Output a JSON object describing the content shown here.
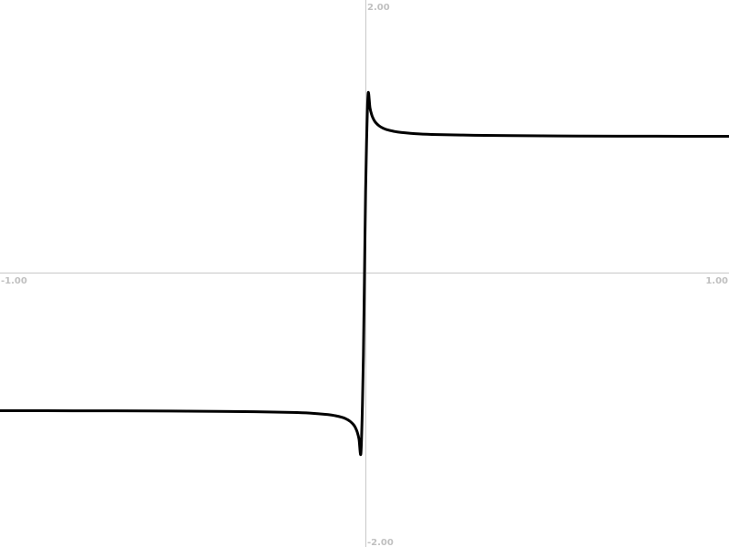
{
  "chart_data": {
    "type": "line",
    "title": "",
    "xlabel": "",
    "ylabel": "",
    "xlim": [
      -1.0,
      1.0
    ],
    "ylim": [
      -2.0,
      2.0
    ],
    "grid": false,
    "axes": {
      "x_min_label": "-1.00",
      "x_max_label": "1.00",
      "y_min_label": "-2.00",
      "y_max_label": "2.00"
    },
    "series": [
      {
        "color": "#000000",
        "x": [
          -1.0,
          -0.8,
          -0.6,
          -0.4,
          -0.3,
          -0.2,
          -0.15,
          -0.1,
          -0.08,
          -0.06,
          -0.05,
          -0.04,
          -0.03,
          -0.025,
          -0.02,
          -0.015,
          -0.01,
          -0.006,
          -0.003,
          0.0,
          0.003,
          0.006,
          0.01,
          0.015,
          0.02,
          0.025,
          0.03,
          0.04,
          0.05,
          0.06,
          0.08,
          0.1,
          0.15,
          0.2,
          0.3,
          0.4,
          0.6,
          0.8,
          1.0
        ],
        "y": [
          -1.003,
          -1.004,
          -1.005,
          -1.008,
          -1.011,
          -1.016,
          -1.021,
          -1.032,
          -1.04,
          -1.053,
          -1.064,
          -1.08,
          -1.106,
          -1.127,
          -1.159,
          -1.212,
          -1.318,
          -1.0,
          -0.6,
          0.0,
          0.6,
          1.0,
          1.318,
          1.212,
          1.159,
          1.127,
          1.106,
          1.08,
          1.064,
          1.053,
          1.04,
          1.032,
          1.021,
          1.016,
          1.011,
          1.008,
          1.005,
          1.004,
          1.003
        ]
      }
    ]
  }
}
